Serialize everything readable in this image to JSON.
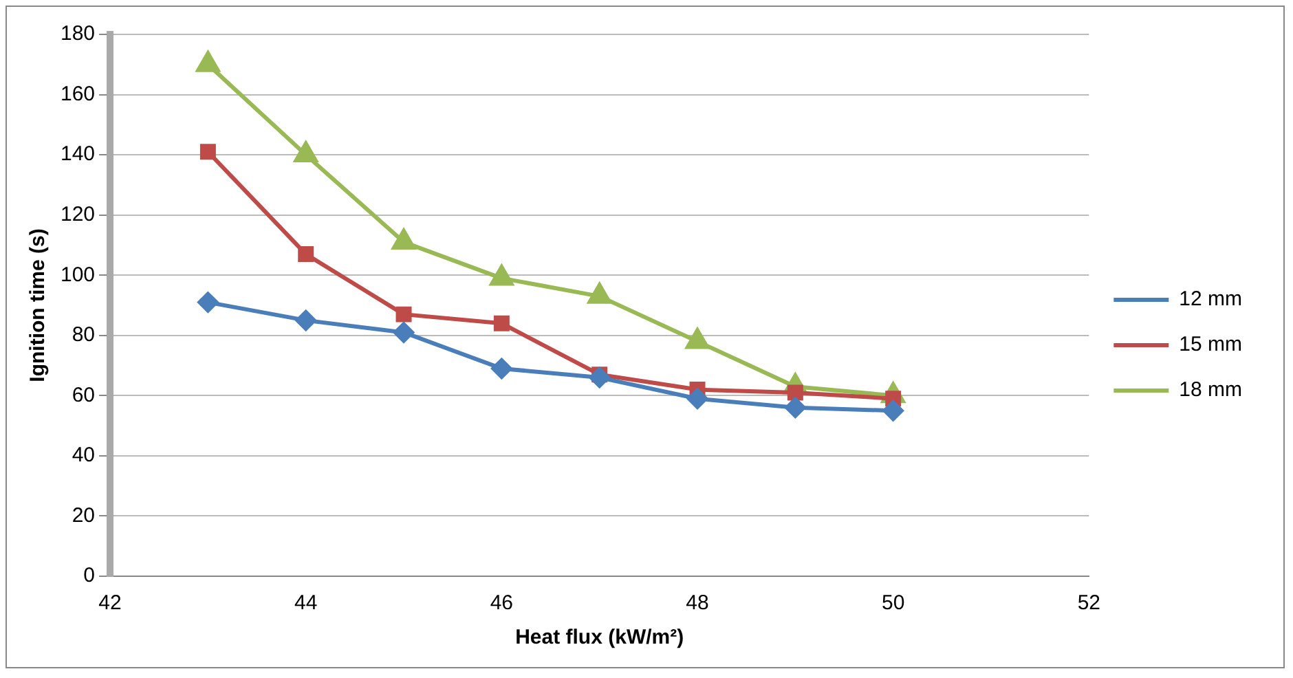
{
  "chart_data": {
    "type": "line",
    "xlabel": "Heat flux (kW/m²)",
    "ylabel": "Ignition time (s)",
    "x": [
      43,
      44,
      45,
      46,
      47,
      48,
      49,
      50
    ],
    "series": [
      {
        "name": "12 mm",
        "color": "#4a7ebb",
        "marker": "diamond",
        "values": [
          91,
          85,
          81,
          69,
          66,
          59,
          56,
          55
        ]
      },
      {
        "name": "15 mm",
        "color": "#be4b48",
        "marker": "square",
        "values": [
          141,
          107,
          87,
          84,
          67,
          62,
          61,
          59
        ]
      },
      {
        "name": "18 mm",
        "color": "#98b954",
        "marker": "triangle",
        "values": [
          170,
          140,
          111,
          99,
          93,
          78,
          63,
          60
        ]
      }
    ],
    "xlim": [
      42,
      52
    ],
    "xticks": [
      42,
      44,
      46,
      48,
      50,
      52
    ],
    "ylim": [
      0,
      180
    ],
    "yticks": [
      0,
      20,
      40,
      60,
      80,
      100,
      120,
      140,
      160,
      180
    ],
    "grid": "y",
    "legend": "right",
    "line_style": "solid"
  }
}
